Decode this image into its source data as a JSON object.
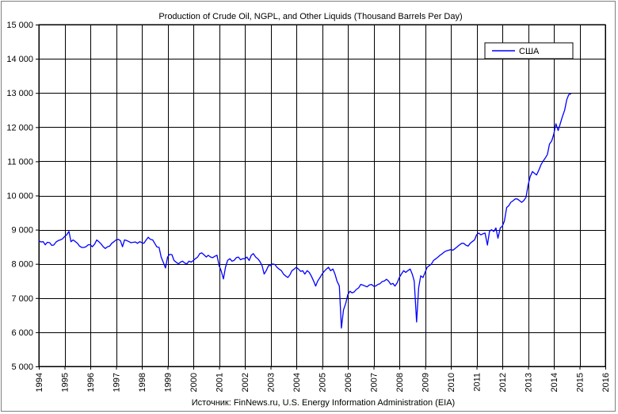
{
  "chart_data": {
    "type": "line",
    "title": "Production of Crude Oil, NGPL, and Other Liquids (Thousand Barrels Per Day)",
    "source": "Источник: FinNews.ru, U.S. Energy Information Administration (EIA)",
    "xlim": [
      1994,
      2016
    ],
    "ylim": [
      5000,
      15000
    ],
    "x_ticks": [
      1994,
      1995,
      1996,
      1997,
      1998,
      1999,
      2000,
      2001,
      2002,
      2003,
      2004,
      2005,
      2006,
      2007,
      2008,
      2009,
      2010,
      2011,
      2012,
      2013,
      2014,
      2015,
      2016
    ],
    "x_tick_labels": [
      "1994",
      "1995",
      "1996",
      "1997",
      "1998",
      "1999",
      "2000",
      "2001",
      "2002",
      "2003",
      "2004",
      "2005",
      "2006",
      "2007",
      "2008",
      "2009",
      "2010",
      "2011",
      "2012",
      "2013",
      "2014",
      "2015",
      "2016"
    ],
    "y_ticks": [
      5000,
      6000,
      7000,
      8000,
      9000,
      10000,
      11000,
      12000,
      13000,
      14000,
      15000
    ],
    "y_tick_labels": [
      "5 000",
      "6 000",
      "7 000",
      "8 000",
      "9 000",
      "10 000",
      "11 000",
      "12 000",
      "13 000",
      "14 000",
      "15 000"
    ],
    "grid": true,
    "legend_position": "top-right",
    "colors": {
      "series": "#0000ff",
      "grid": "#000000",
      "frame": "#7f7f7f"
    },
    "series": [
      {
        "name": "США",
        "x": [
          1994.0,
          1994.08,
          1994.17,
          1994.25,
          1994.33,
          1994.42,
          1994.5,
          1994.58,
          1994.67,
          1994.75,
          1994.83,
          1994.92,
          1995.0,
          1995.08,
          1995.17,
          1995.25,
          1995.33,
          1995.42,
          1995.5,
          1995.58,
          1995.67,
          1995.75,
          1995.83,
          1995.92,
          1996.0,
          1996.08,
          1996.17,
          1996.25,
          1996.33,
          1996.42,
          1996.5,
          1996.58,
          1996.67,
          1996.75,
          1996.83,
          1996.92,
          1997.0,
          1997.08,
          1997.17,
          1997.25,
          1997.33,
          1997.42,
          1997.5,
          1997.58,
          1997.67,
          1997.75,
          1997.83,
          1997.92,
          1998.0,
          1998.08,
          1998.17,
          1998.25,
          1998.33,
          1998.42,
          1998.5,
          1998.58,
          1998.67,
          1998.75,
          1998.83,
          1998.92,
          1999.0,
          1999.08,
          1999.17,
          1999.25,
          1999.33,
          1999.42,
          1999.5,
          1999.58,
          1999.67,
          1999.75,
          1999.83,
          1999.92,
          2000.0,
          2000.08,
          2000.17,
          2000.25,
          2000.33,
          2000.42,
          2000.5,
          2000.58,
          2000.67,
          2000.75,
          2000.83,
          2000.92,
          2001.0,
          2001.08,
          2001.17,
          2001.25,
          2001.33,
          2001.42,
          2001.5,
          2001.58,
          2001.67,
          2001.75,
          2001.83,
          2001.92,
          2002.0,
          2002.08,
          2002.17,
          2002.25,
          2002.33,
          2002.42,
          2002.5,
          2002.58,
          2002.67,
          2002.75,
          2002.83,
          2002.92,
          2003.0,
          2003.08,
          2003.17,
          2003.25,
          2003.33,
          2003.42,
          2003.5,
          2003.58,
          2003.67,
          2003.75,
          2003.83,
          2003.92,
          2004.0,
          2004.08,
          2004.17,
          2004.25,
          2004.33,
          2004.42,
          2004.5,
          2004.58,
          2004.67,
          2004.75,
          2004.83,
          2004.92,
          2005.0,
          2005.08,
          2005.17,
          2005.25,
          2005.33,
          2005.42,
          2005.5,
          2005.58,
          2005.67,
          2005.75,
          2005.83,
          2005.92,
          2006.0,
          2006.08,
          2006.17,
          2006.25,
          2006.33,
          2006.42,
          2006.5,
          2006.58,
          2006.67,
          2006.75,
          2006.83,
          2006.92,
          2007.0,
          2007.08,
          2007.17,
          2007.25,
          2007.33,
          2007.42,
          2007.5,
          2007.58,
          2007.67,
          2007.75,
          2007.83,
          2007.92,
          2008.0,
          2008.08,
          2008.17,
          2008.25,
          2008.33,
          2008.42,
          2008.5,
          2008.58,
          2008.67,
          2008.75,
          2008.83,
          2008.92,
          2009.0,
          2009.08,
          2009.17,
          2009.25,
          2009.33,
          2009.42,
          2009.5,
          2009.58,
          2009.67,
          2009.75,
          2009.83,
          2009.92,
          2010.0,
          2010.08,
          2010.17,
          2010.25,
          2010.33,
          2010.42,
          2010.5,
          2010.58,
          2010.67,
          2010.75,
          2010.83,
          2010.92,
          2011.0,
          2011.08,
          2011.17,
          2011.25,
          2011.33,
          2011.42,
          2011.5,
          2011.58,
          2011.67,
          2011.75,
          2011.83,
          2011.92,
          2012.0,
          2012.08,
          2012.17,
          2012.25,
          2012.33,
          2012.42,
          2012.5,
          2012.58,
          2012.67,
          2012.75,
          2012.83,
          2012.92,
          2013.0,
          2013.08,
          2013.17,
          2013.25,
          2013.33,
          2013.42,
          2013.5,
          2013.58,
          2013.67,
          2013.75,
          2013.83,
          2013.92,
          2014.0,
          2014.08,
          2014.17,
          2014.25,
          2014.33,
          2014.42,
          2014.5,
          2014.58,
          2014.67
        ],
        "y": [
          8680,
          8640,
          8650,
          8560,
          8630,
          8620,
          8540,
          8550,
          8640,
          8680,
          8700,
          8730,
          8800,
          8850,
          8950,
          8650,
          8700,
          8650,
          8600,
          8520,
          8480,
          8480,
          8500,
          8560,
          8560,
          8500,
          8580,
          8700,
          8650,
          8580,
          8500,
          8450,
          8500,
          8520,
          8600,
          8650,
          8700,
          8720,
          8680,
          8500,
          8700,
          8680,
          8650,
          8620,
          8630,
          8640,
          8600,
          8650,
          8620,
          8600,
          8700,
          8780,
          8720,
          8700,
          8600,
          8500,
          8480,
          8200,
          8050,
          7880,
          8200,
          8280,
          8270,
          8100,
          8050,
          8000,
          8050,
          8080,
          8020,
          8000,
          8080,
          8050,
          8100,
          8150,
          8200,
          8300,
          8320,
          8260,
          8200,
          8250,
          8200,
          8180,
          8220,
          8250,
          7950,
          7800,
          7560,
          7900,
          8100,
          8150,
          8080,
          8100,
          8180,
          8200,
          8120,
          8150,
          8150,
          8200,
          8100,
          8250,
          8300,
          8200,
          8150,
          8080,
          7950,
          7700,
          7800,
          7950,
          7950,
          8000,
          7980,
          7900,
          7850,
          7800,
          7700,
          7650,
          7600,
          7680,
          7800,
          7850,
          7900,
          7850,
          7780,
          7800,
          7700,
          7800,
          7750,
          7650,
          7500,
          7350,
          7500,
          7600,
          7700,
          7780,
          7850,
          7900,
          7800,
          7850,
          7700,
          7500,
          7350,
          6120,
          6650,
          6850,
          7100,
          7200,
          7150,
          7180,
          7250,
          7300,
          7400,
          7380,
          7350,
          7330,
          7380,
          7400,
          7350,
          7350,
          7400,
          7420,
          7480,
          7500,
          7550,
          7500,
          7400,
          7430,
          7350,
          7450,
          7600,
          7700,
          7800,
          7750,
          7800,
          7850,
          7700,
          7500,
          6300,
          7300,
          7650,
          7600,
          7750,
          7900,
          7950,
          8000,
          8100,
          8150,
          8200,
          8250,
          8300,
          8350,
          8380,
          8400,
          8420,
          8400,
          8450,
          8500,
          8550,
          8600,
          8600,
          8550,
          8520,
          8600,
          8650,
          8700,
          8850,
          8900,
          8850,
          8880,
          8900,
          8550,
          8950,
          9000,
          8950,
          9050,
          8750,
          9050,
          9100,
          9250,
          9650,
          9700,
          9800,
          9850,
          9900,
          9900,
          9850,
          9800,
          9850,
          9950,
          10300,
          10550,
          10700,
          10650,
          10600,
          10750,
          10900,
          11000,
          11100,
          11200,
          11500,
          11600,
          11800,
          12100,
          11900,
          12100,
          12300,
          12500,
          12800,
          12950,
          12980
        ]
      }
    ]
  }
}
